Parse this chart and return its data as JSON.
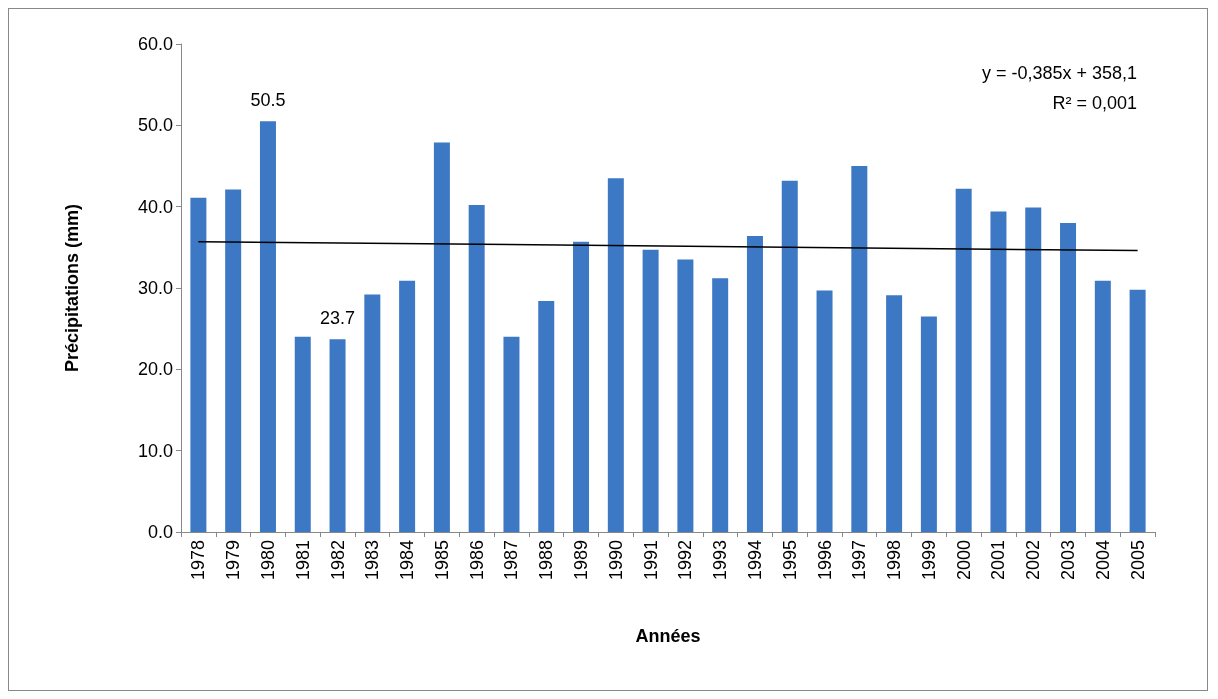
{
  "chart_data": {
    "type": "bar",
    "xlabel": "Années",
    "ylabel": "Précipitations (mm)",
    "categories": [
      "1978",
      "1979",
      "1980",
      "1981",
      "1982",
      "1983",
      "1984",
      "1985",
      "1986",
      "1987",
      "1988",
      "1989",
      "1990",
      "1991",
      "1992",
      "1993",
      "1994",
      "1995",
      "1996",
      "1997",
      "1998",
      "1999",
      "2000",
      "2001",
      "2002",
      "2003",
      "2004",
      "2005"
    ],
    "series": [
      {
        "color": "#3d78c4",
        "values": [
          41.1,
          42.1,
          50.5,
          24.0,
          23.7,
          29.2,
          30.9,
          47.9,
          40.2,
          24.0,
          28.4,
          35.7,
          43.5,
          34.7,
          33.5,
          31.2,
          36.4,
          43.2,
          29.7,
          45.0,
          29.1,
          26.5,
          42.2,
          39.4,
          39.9,
          38.0,
          30.9,
          29.8
        ],
        "value_labels": [
          null,
          null,
          "50.5",
          null,
          "23.7",
          null,
          null,
          null,
          null,
          null,
          null,
          null,
          null,
          null,
          null,
          null,
          null,
          null,
          null,
          null,
          null,
          null,
          null,
          null,
          null,
          null,
          null,
          null
        ]
      },
      {
        "type": "line",
        "color": "#000000",
        "values": [
          35.7,
          null,
          null,
          null,
          null,
          null,
          null,
          null,
          null,
          null,
          null,
          null,
          null,
          null,
          null,
          null,
          null,
          null,
          null,
          null,
          null,
          null,
          null,
          null,
          null,
          null,
          null,
          34.6
        ],
        "marker": "none"
      }
    ],
    "ylim": [
      0,
      60
    ],
    "yticks": [
      {
        "value": 0,
        "label": "0.0"
      },
      {
        "value": 10,
        "label": "10.0"
      },
      {
        "value": 20,
        "label": "20.0"
      },
      {
        "value": 30,
        "label": "30.0"
      },
      {
        "value": 40,
        "label": "40.0"
      },
      {
        "value": 50,
        "label": "50.0"
      },
      {
        "value": 60,
        "label": "60.0"
      }
    ],
    "annotations": [
      "y = -0,385x + 358,1",
      "R² = 0,001"
    ],
    "grid": false
  }
}
